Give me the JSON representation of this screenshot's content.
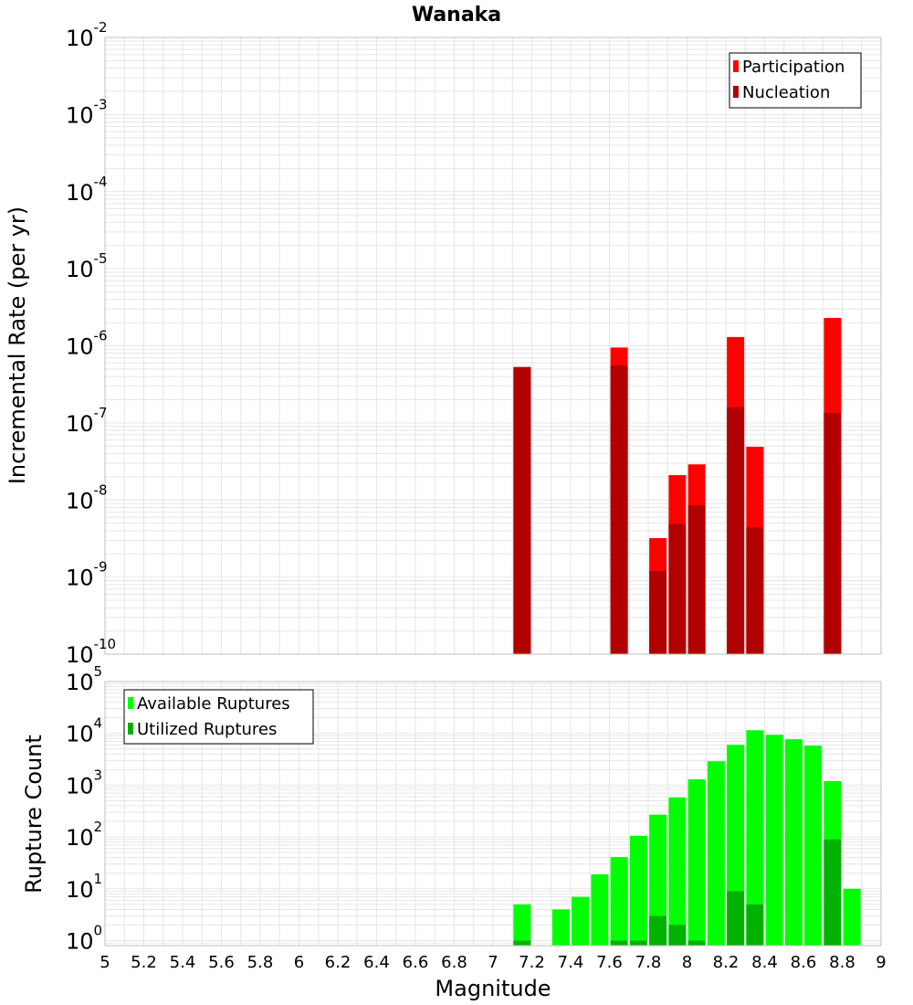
{
  "title": "Wanaka",
  "colors": {
    "participation": "#ff0000",
    "nucleation": "#b20000",
    "available": "#00ff00",
    "utilized": "#00b200",
    "grid": "#e6e6e6",
    "frame": "#bfbfbf"
  },
  "chart_data": [
    {
      "type": "bar",
      "panel": "top",
      "ylabel": "Incremental Rate (per yr)",
      "yscale": "log",
      "ylim": [
        1e-10,
        0.01
      ],
      "xlim": [
        5,
        9
      ],
      "legend_position": "top-right",
      "legend": [
        "Participation",
        "Nucleation"
      ],
      "series": [
        {
          "name": "Participation",
          "points": [
            {
              "x": 7.15,
              "y": 5.3e-07
            },
            {
              "x": 7.65,
              "y": 9.5e-07
            },
            {
              "x": 7.85,
              "y": 3.2e-09
            },
            {
              "x": 7.95,
              "y": 2.1e-08
            },
            {
              "x": 8.05,
              "y": 2.9e-08
            },
            {
              "x": 8.25,
              "y": 1.3e-06
            },
            {
              "x": 8.35,
              "y": 4.9e-08
            },
            {
              "x": 8.75,
              "y": 2.3e-06
            }
          ]
        },
        {
          "name": "Nucleation",
          "points": [
            {
              "x": 7.15,
              "y": 5.3e-07
            },
            {
              "x": 7.65,
              "y": 5.6e-07
            },
            {
              "x": 7.85,
              "y": 1.2e-09
            },
            {
              "x": 7.95,
              "y": 4.9e-09
            },
            {
              "x": 8.05,
              "y": 8.5e-09
            },
            {
              "x": 8.25,
              "y": 1.6e-07
            },
            {
              "x": 8.35,
              "y": 4.4e-09
            },
            {
              "x": 8.75,
              "y": 1.35e-07
            }
          ]
        }
      ],
      "yticks": [
        {
          "base": "10",
          "exp": "-10"
        },
        {
          "base": "10",
          "exp": "-9"
        },
        {
          "base": "10",
          "exp": "-8"
        },
        {
          "base": "10",
          "exp": "-7"
        },
        {
          "base": "10",
          "exp": "-6"
        },
        {
          "base": "10",
          "exp": "-5"
        },
        {
          "base": "10",
          "exp": "-4"
        },
        {
          "base": "10",
          "exp": "-3"
        },
        {
          "base": "10",
          "exp": "-2"
        }
      ],
      "grid": true
    },
    {
      "type": "bar",
      "panel": "bottom",
      "xlabel": "Magnitude",
      "ylabel": "Rupture Count",
      "yscale": "log",
      "ylim": [
        0.8,
        100000
      ],
      "xlim": [
        5,
        9
      ],
      "legend_position": "top-left",
      "legend": [
        "Available Ruptures",
        "Utilized Ruptures"
      ],
      "series": [
        {
          "name": "Available Ruptures",
          "points": [
            {
              "x": 7.15,
              "y": 5
            },
            {
              "x": 7.35,
              "y": 4
            },
            {
              "x": 7.45,
              "y": 7
            },
            {
              "x": 7.55,
              "y": 19
            },
            {
              "x": 7.65,
              "y": 41
            },
            {
              "x": 7.75,
              "y": 105
            },
            {
              "x": 7.85,
              "y": 270
            },
            {
              "x": 7.95,
              "y": 580
            },
            {
              "x": 8.05,
              "y": 1300
            },
            {
              "x": 8.15,
              "y": 2900
            },
            {
              "x": 8.25,
              "y": 6000
            },
            {
              "x": 8.35,
              "y": 11500
            },
            {
              "x": 8.45,
              "y": 9400
            },
            {
              "x": 8.55,
              "y": 7700
            },
            {
              "x": 8.65,
              "y": 5800
            },
            {
              "x": 8.75,
              "y": 1200
            },
            {
              "x": 8.85,
              "y": 10
            }
          ]
        },
        {
          "name": "Utilized Ruptures",
          "points": [
            {
              "x": 7.15,
              "y": 1
            },
            {
              "x": 7.65,
              "y": 1
            },
            {
              "x": 7.75,
              "y": 1
            },
            {
              "x": 7.85,
              "y": 3
            },
            {
              "x": 7.95,
              "y": 2
            },
            {
              "x": 8.05,
              "y": 1
            },
            {
              "x": 8.25,
              "y": 9
            },
            {
              "x": 8.35,
              "y": 5
            },
            {
              "x": 8.75,
              "y": 90
            }
          ]
        }
      ],
      "yticks": [
        {
          "base": "10",
          "exp": "0"
        },
        {
          "base": "10",
          "exp": "1"
        },
        {
          "base": "10",
          "exp": "2"
        },
        {
          "base": "10",
          "exp": "3"
        },
        {
          "base": "10",
          "exp": "4"
        },
        {
          "base": "10",
          "exp": "5"
        }
      ],
      "xticks": [
        "5",
        "5.2",
        "5.4",
        "5.6",
        "5.8",
        "6",
        "6.2",
        "6.4",
        "6.6",
        "6.8",
        "7",
        "7.2",
        "7.4",
        "7.6",
        "7.8",
        "8",
        "8.2",
        "8.4",
        "8.6",
        "8.8",
        "9"
      ],
      "grid": true
    }
  ]
}
